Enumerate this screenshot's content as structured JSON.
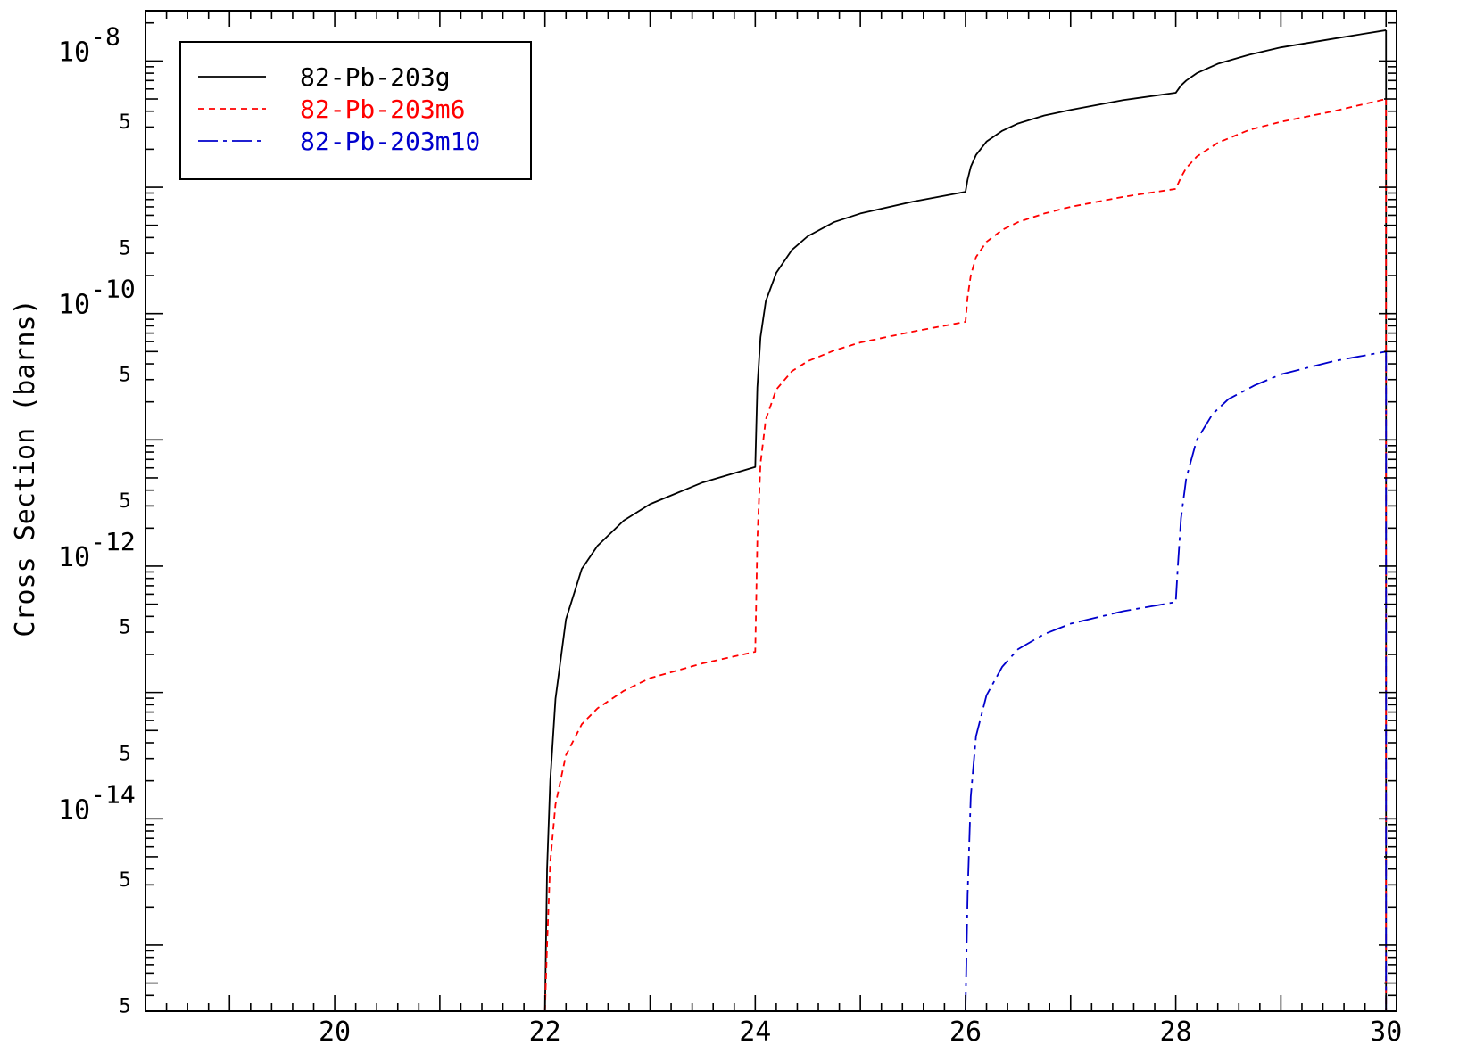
{
  "chart_data": {
    "type": "line",
    "title": "",
    "xlabel": "",
    "ylabel": "Cross Section (barns)",
    "xscale": "linear",
    "yscale": "log",
    "xlim": [
      18.2,
      30.1
    ],
    "ylim": [
      3e-16,
      2.5e-08
    ],
    "x_ticks": [
      20,
      22,
      24,
      26,
      28,
      30
    ],
    "x_tick_labels": [
      "20",
      "22",
      "24",
      "26",
      "28",
      "30"
    ],
    "y_decade_labels": [
      {
        "value": 1e-08,
        "base": "10",
        "exp": "-8"
      },
      {
        "value": 1e-10,
        "base": "10",
        "exp": "-10"
      },
      {
        "value": 1e-12,
        "base": "10",
        "exp": "-12"
      },
      {
        "value": 1e-14,
        "base": "10",
        "exp": "-14"
      }
    ],
    "y_minor_labels": [
      {
        "value": 5e-09,
        "label": "5"
      },
      {
        "value": 5e-10,
        "label": "5"
      },
      {
        "value": 5e-11,
        "label": "5"
      },
      {
        "value": 5e-12,
        "label": "5"
      },
      {
        "value": 5e-13,
        "label": "5"
      },
      {
        "value": 5e-14,
        "label": "5"
      },
      {
        "value": 5e-15,
        "label": "5"
      },
      {
        "value": 5e-16,
        "label": "5"
      }
    ],
    "grid": false,
    "legend_position": "top-left",
    "series": [
      {
        "name": "82-Pb-203g",
        "color": "#000000",
        "dash": "solid",
        "x": [
          22.0,
          22.02,
          22.05,
          22.1,
          22.2,
          22.35,
          22.5,
          22.75,
          23.0,
          23.5,
          24.0,
          24.0,
          24.02,
          24.05,
          24.1,
          24.2,
          24.35,
          24.5,
          24.75,
          25.0,
          25.5,
          26.0,
          26.0,
          26.02,
          26.05,
          26.1,
          26.2,
          26.35,
          26.5,
          26.75,
          27.0,
          27.5,
          28.0,
          28.0,
          28.05,
          28.1,
          28.2,
          28.4,
          28.7,
          29.0,
          29.5,
          30.0
        ],
        "y": [
          3e-16,
          4e-15,
          2e-14,
          8.9e-14,
          3.8e-13,
          9.5e-13,
          1.45e-12,
          2.3e-12,
          3.1e-12,
          4.6e-12,
          6.1e-12,
          6.1e-12,
          2.6e-11,
          6.5e-11,
          1.25e-10,
          2.1e-10,
          3.2e-10,
          4.1e-10,
          5.3e-10,
          6.2e-10,
          7.7e-10,
          9.2e-10,
          9.2e-10,
          1.15e-09,
          1.45e-09,
          1.8e-09,
          2.3e-09,
          2.8e-09,
          3.2e-09,
          3.7e-09,
          4.1e-09,
          4.9e-09,
          5.6e-09,
          5.6e-09,
          6.4e-09,
          7e-09,
          8e-09,
          9.5e-09,
          1.12e-08,
          1.28e-08,
          1.5e-08,
          1.75e-08
        ]
      },
      {
        "name": "82-Pb-203m6",
        "color": "#ff0000",
        "dash": "dashed",
        "x": [
          22.0,
          22.02,
          22.05,
          22.1,
          22.2,
          22.35,
          22.5,
          22.75,
          23.0,
          23.5,
          24.0,
          24.0,
          24.02,
          24.05,
          24.1,
          24.2,
          24.35,
          24.5,
          24.75,
          25.0,
          25.5,
          26.0,
          26.0,
          26.02,
          26.05,
          26.1,
          26.2,
          26.35,
          26.5,
          26.75,
          27.0,
          27.5,
          28.0,
          28.0,
          28.05,
          28.1,
          28.2,
          28.4,
          28.7,
          29.0,
          29.5,
          30.0
        ],
        "y": [
          3e-16,
          1e-15,
          4.5e-15,
          1.3e-14,
          3.2e-14,
          5.6e-14,
          7.5e-14,
          1.03e-13,
          1.3e-13,
          1.7e-13,
          2.1e-13,
          2.1e-13,
          1.6e-12,
          6.5e-12,
          1.45e-11,
          2.5e-11,
          3.5e-11,
          4.2e-11,
          5.1e-11,
          5.9e-11,
          7.2e-11,
          8.6e-11,
          8.6e-11,
          1.35e-10,
          2e-10,
          2.8e-10,
          3.7e-10,
          4.6e-10,
          5.3e-10,
          6.2e-10,
          7e-10,
          8.4e-10,
          9.7e-10,
          9.7e-10,
          1.2e-09,
          1.42e-09,
          1.75e-09,
          2.25e-09,
          2.85e-09,
          3.3e-09,
          4e-09,
          5e-09
        ]
      },
      {
        "name": "82-Pb-203m10",
        "color": "#0000cc",
        "dash": "dashdot",
        "x": [
          26.0,
          26.02,
          26.05,
          26.1,
          26.2,
          26.35,
          26.5,
          26.75,
          27.0,
          27.5,
          28.0,
          28.0,
          28.02,
          28.05,
          28.1,
          28.2,
          28.35,
          28.5,
          28.75,
          29.0,
          29.5,
          30.0
        ],
        "y": [
          3e-16,
          2.5e-15,
          1.5e-14,
          4.5e-14,
          9.5e-14,
          1.6e-13,
          2.2e-13,
          2.9e-13,
          3.5e-13,
          4.4e-13,
          5.2e-13,
          5.2e-13,
          1e-12,
          2.4e-12,
          5e-12,
          1e-11,
          1.6e-11,
          2.1e-11,
          2.7e-11,
          3.3e-11,
          4.2e-11,
          5e-11
        ]
      }
    ]
  }
}
